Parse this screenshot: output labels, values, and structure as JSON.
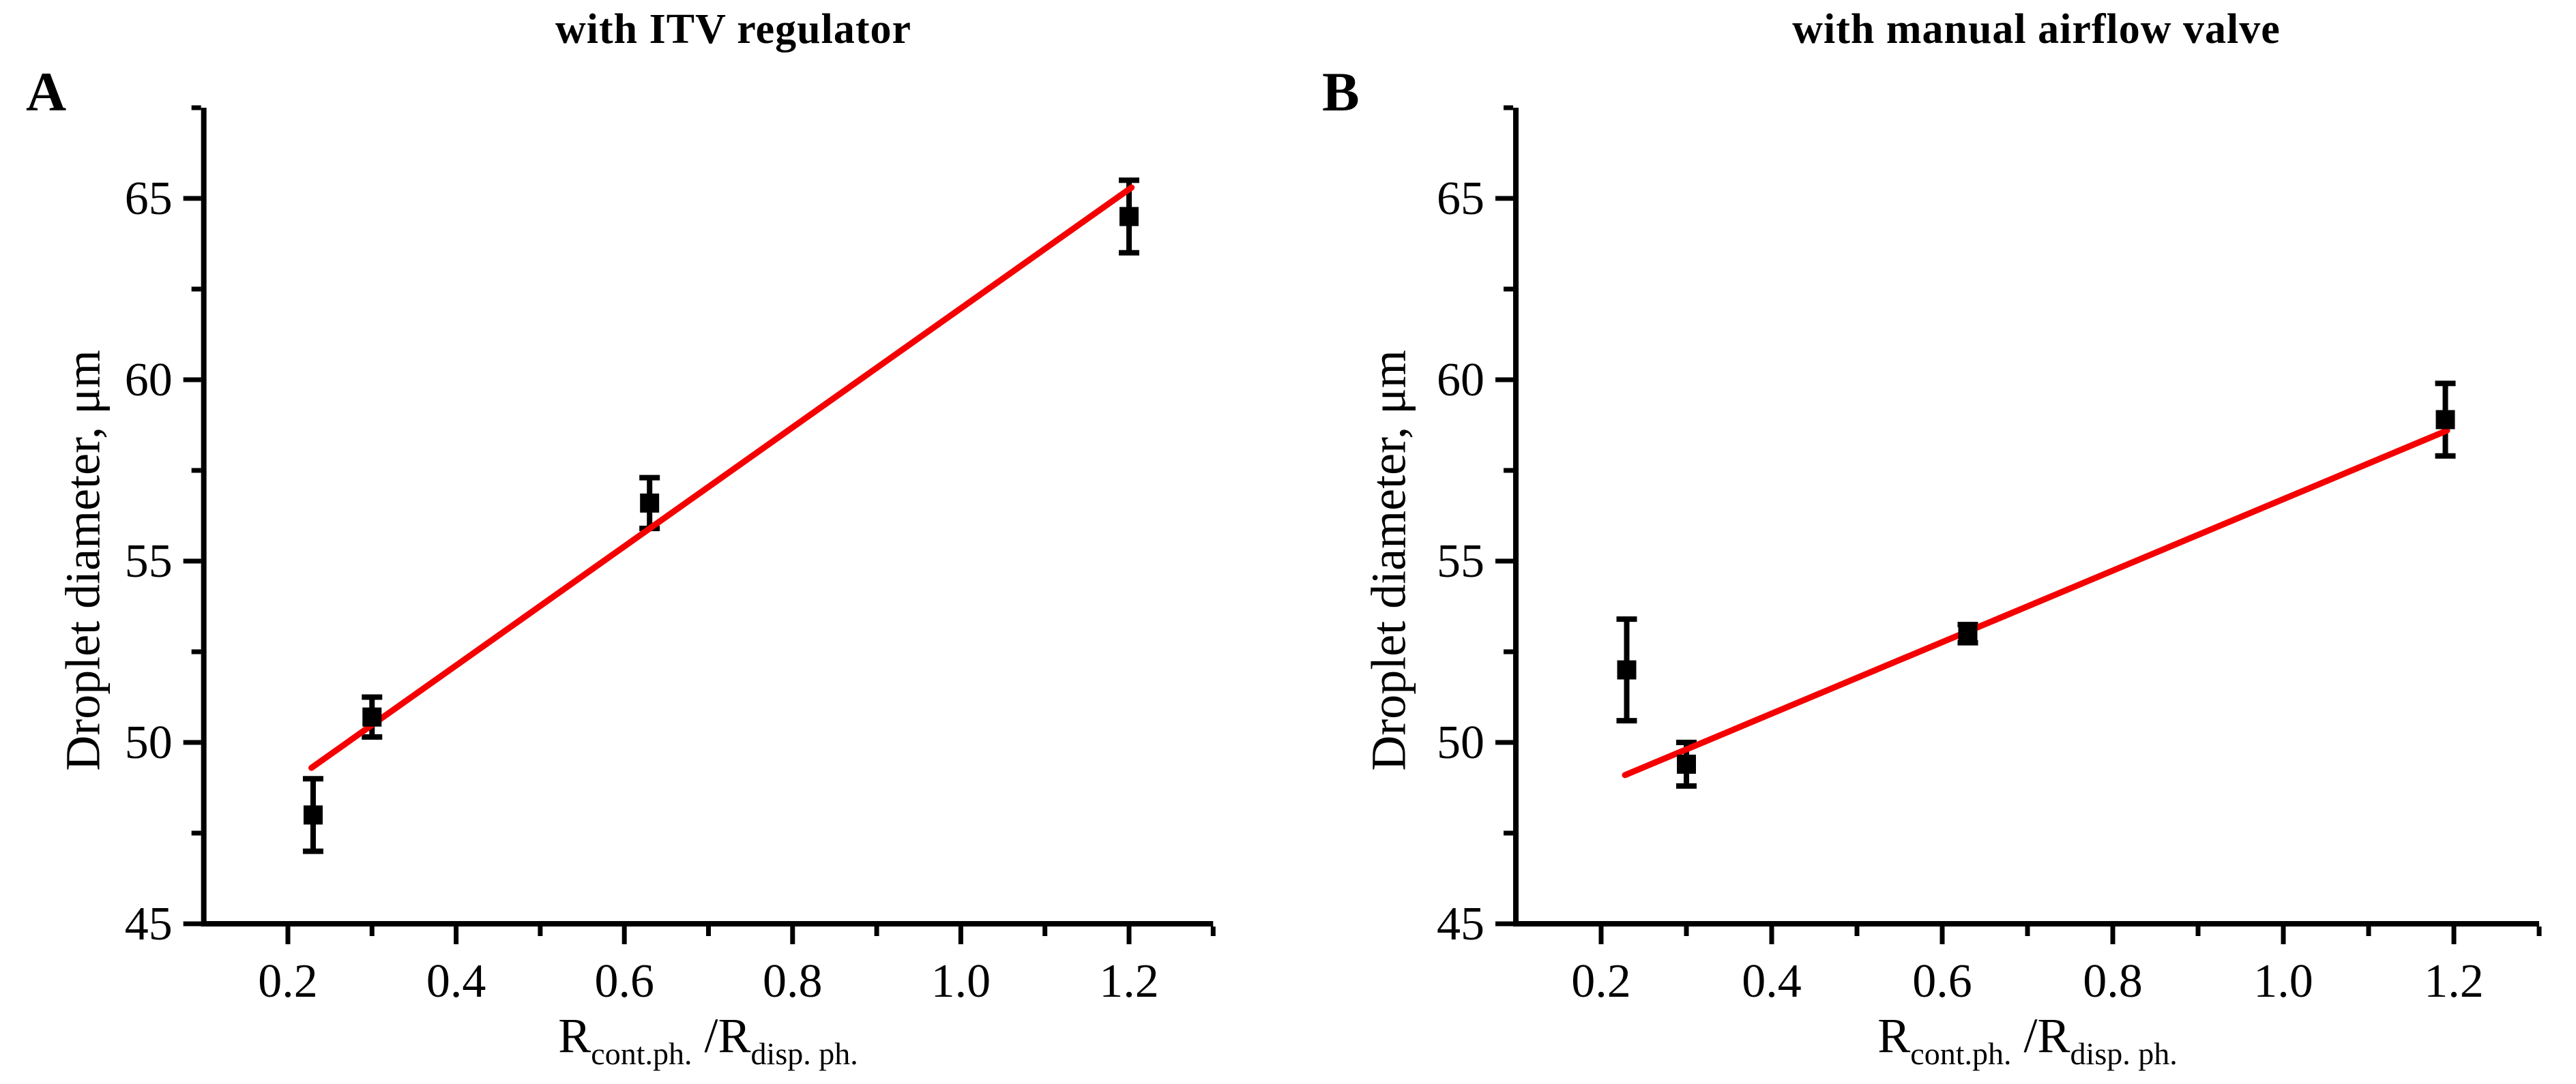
{
  "figure": {
    "panels": [
      {
        "corner_label": "A"
      },
      {
        "corner_label": "B"
      }
    ],
    "x_axis_title_parts": {
      "base1": "R",
      "sub1": "cont.ph.",
      "base2": " /R",
      "sub2": "disp. ph."
    }
  },
  "chart_data": [
    {
      "type": "scatter",
      "panel": "A",
      "title": "with ITV regulator",
      "xlabel": "R_cont.ph. / R_disp. ph.",
      "ylabel": "Droplet diameter, μm",
      "xlim": [
        0.1,
        1.3
      ],
      "ylim": [
        45,
        67.5
      ],
      "grid": false,
      "legend": "none",
      "x_major_ticks": [
        0.2,
        0.4,
        0.6,
        0.8,
        1.0,
        1.2
      ],
      "x_tick_labels": [
        "0.2",
        "0.4",
        "0.6",
        "0.8",
        "1.0",
        "1.2"
      ],
      "x_minor_ticks": [
        0.3,
        0.5,
        0.7,
        0.9,
        1.1,
        1.3
      ],
      "y_major_ticks": [
        45,
        50,
        55,
        60,
        65
      ],
      "y_tick_labels": [
        "45",
        "50",
        "55",
        "60",
        "65"
      ],
      "y_minor_ticks": [
        47.5,
        52.5,
        57.5,
        62.5,
        67.5
      ],
      "points": [
        {
          "x": 0.23,
          "y": 48.0,
          "err": 1.0
        },
        {
          "x": 0.3,
          "y": 50.7,
          "err": 0.55
        },
        {
          "x": 0.63,
          "y": 56.6,
          "err": 0.7
        },
        {
          "x": 1.2,
          "y": 64.5,
          "err": 1.0
        }
      ],
      "fit_line": {
        "x1": 0.228,
        "y1": 49.3,
        "x2": 1.203,
        "y2": 65.3
      },
      "colors": {
        "marker": "#000000",
        "fit_line": "#f40000",
        "axis": "#000000"
      }
    },
    {
      "type": "scatter",
      "panel": "B",
      "title": "with manual airflow valve",
      "xlabel": "R_cont.ph. / R_disp. ph.",
      "ylabel": "Droplet diameter, μm",
      "xlim": [
        0.1,
        1.3
      ],
      "ylim": [
        45,
        67.5
      ],
      "grid": false,
      "legend": "none",
      "x_major_ticks": [
        0.2,
        0.4,
        0.6,
        0.8,
        1.0,
        1.2
      ],
      "x_tick_labels": [
        "0.2",
        "0.4",
        "0.6",
        "0.8",
        "1.0",
        "1.2"
      ],
      "x_minor_ticks": [
        0.3,
        0.5,
        0.7,
        0.9,
        1.1,
        1.3
      ],
      "y_major_ticks": [
        45,
        50,
        55,
        60,
        65
      ],
      "y_tick_labels": [
        "45",
        "50",
        "55",
        "60",
        "65"
      ],
      "y_minor_ticks": [
        47.5,
        52.5,
        57.5,
        62.5,
        67.5
      ],
      "points": [
        {
          "x": 0.23,
          "y": 52.0,
          "err": 1.4
        },
        {
          "x": 0.3,
          "y": 49.4,
          "err": 0.6
        },
        {
          "x": 0.63,
          "y": 53.0,
          "err": 0.25
        },
        {
          "x": 1.19,
          "y": 58.9,
          "err": 1.0
        }
      ],
      "fit_line": {
        "x1": 0.228,
        "y1": 49.1,
        "x2": 1.192,
        "y2": 58.6
      },
      "colors": {
        "marker": "#000000",
        "fit_line": "#f40000",
        "axis": "#000000"
      }
    }
  ]
}
